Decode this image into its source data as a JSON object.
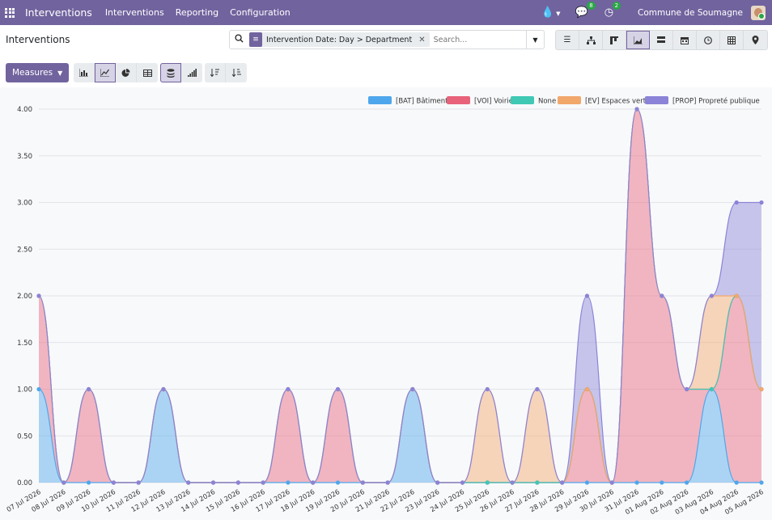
{
  "navbar": {
    "brand": "Interventions",
    "menus": [
      "Interventions",
      "Reporting",
      "Configuration"
    ],
    "chat_badge": "8",
    "activity_badge": "2",
    "company": "Commune de Soumagne"
  },
  "control_panel": {
    "title": "Interventions",
    "facet": "Intervention Date: Day > Department",
    "search_placeholder": "Search...",
    "views": [
      "list-view",
      "hierarchy-view",
      "kanban-view",
      "graph-view",
      "pivot-view",
      "calendar-view",
      "activity-view",
      "spreadsheet-view",
      "map-view"
    ],
    "active_view": "graph-view"
  },
  "toolbar": {
    "measures_label": "Measures"
  },
  "chart_data": {
    "type": "area",
    "stacked": true,
    "categories": [
      "07 Jul 2026",
      "08 Jul 2026",
      "09 Jul 2026",
      "10 Jul 2026",
      "11 Jul 2026",
      "12 Jul 2026",
      "13 Jul 2026",
      "14 Jul 2026",
      "15 Jul 2026",
      "16 Jul 2026",
      "17 Jul 2026",
      "18 Jul 2026",
      "19 Jul 2026",
      "20 Jul 2026",
      "21 Jul 2026",
      "22 Jul 2026",
      "23 Jul 2026",
      "24 Jul 2026",
      "25 Jul 2026",
      "26 Jul 2026",
      "27 Jul 2026",
      "28 Jul 2026",
      "29 Jul 2026",
      "30 Jul 2026",
      "31 Jul 2026",
      "01 Aug 2026",
      "02 Aug 2026",
      "03 Aug 2026",
      "04 Aug 2026",
      "05 Aug 2026"
    ],
    "yticks": [
      "0.00",
      "0.50",
      "1.00",
      "1.50",
      "2.00",
      "2.50",
      "3.00",
      "3.50",
      "4.00"
    ],
    "ylim": [
      0,
      4
    ],
    "grid": true,
    "legend_position": "top-right",
    "series": [
      {
        "name": "[BAT] Bâtiments",
        "color": "#4ea7ec",
        "values": [
          1,
          0,
          0,
          0,
          0,
          1,
          0,
          0,
          0,
          0,
          0,
          0,
          0,
          0,
          0,
          1,
          0,
          0,
          0,
          0,
          0,
          0,
          0,
          0,
          0,
          0,
          0,
          1,
          0,
          0
        ]
      },
      {
        "name": "[VOI] Voirie",
        "color": "#e8627a",
        "values": [
          1,
          0,
          1,
          0,
          0,
          0,
          0,
          0,
          0,
          0,
          1,
          0,
          1,
          0,
          0,
          0,
          0,
          0,
          0,
          0,
          0,
          0,
          1,
          0,
          4,
          2,
          1,
          0,
          2,
          1
        ]
      },
      {
        "name": "None",
        "color": "#3fc8b3",
        "values": [
          0,
          0,
          0,
          0,
          0,
          0,
          0,
          0,
          0,
          0,
          0,
          0,
          0,
          0,
          0,
          0,
          0,
          0,
          0,
          0,
          0,
          0,
          0,
          0,
          0,
          0,
          0,
          0,
          0,
          0
        ]
      },
      {
        "name": "[EV] Espaces verts",
        "color": "#f2a76b",
        "values": [
          0,
          0,
          0,
          0,
          0,
          0,
          0,
          0,
          0,
          0,
          0,
          0,
          0,
          0,
          0,
          0,
          0,
          0,
          1,
          0,
          1,
          0,
          0,
          0,
          0,
          0,
          0,
          1,
          0,
          0
        ]
      },
      {
        "name": "[PROP] Propreté publique",
        "color": "#8b83d8",
        "values": [
          0,
          0,
          0,
          0,
          0,
          0,
          0,
          0,
          0,
          0,
          0,
          0,
          0,
          0,
          0,
          0,
          0,
          0,
          0,
          0,
          0,
          0,
          1,
          0,
          0,
          0,
          0,
          0,
          1,
          2
        ]
      }
    ]
  }
}
